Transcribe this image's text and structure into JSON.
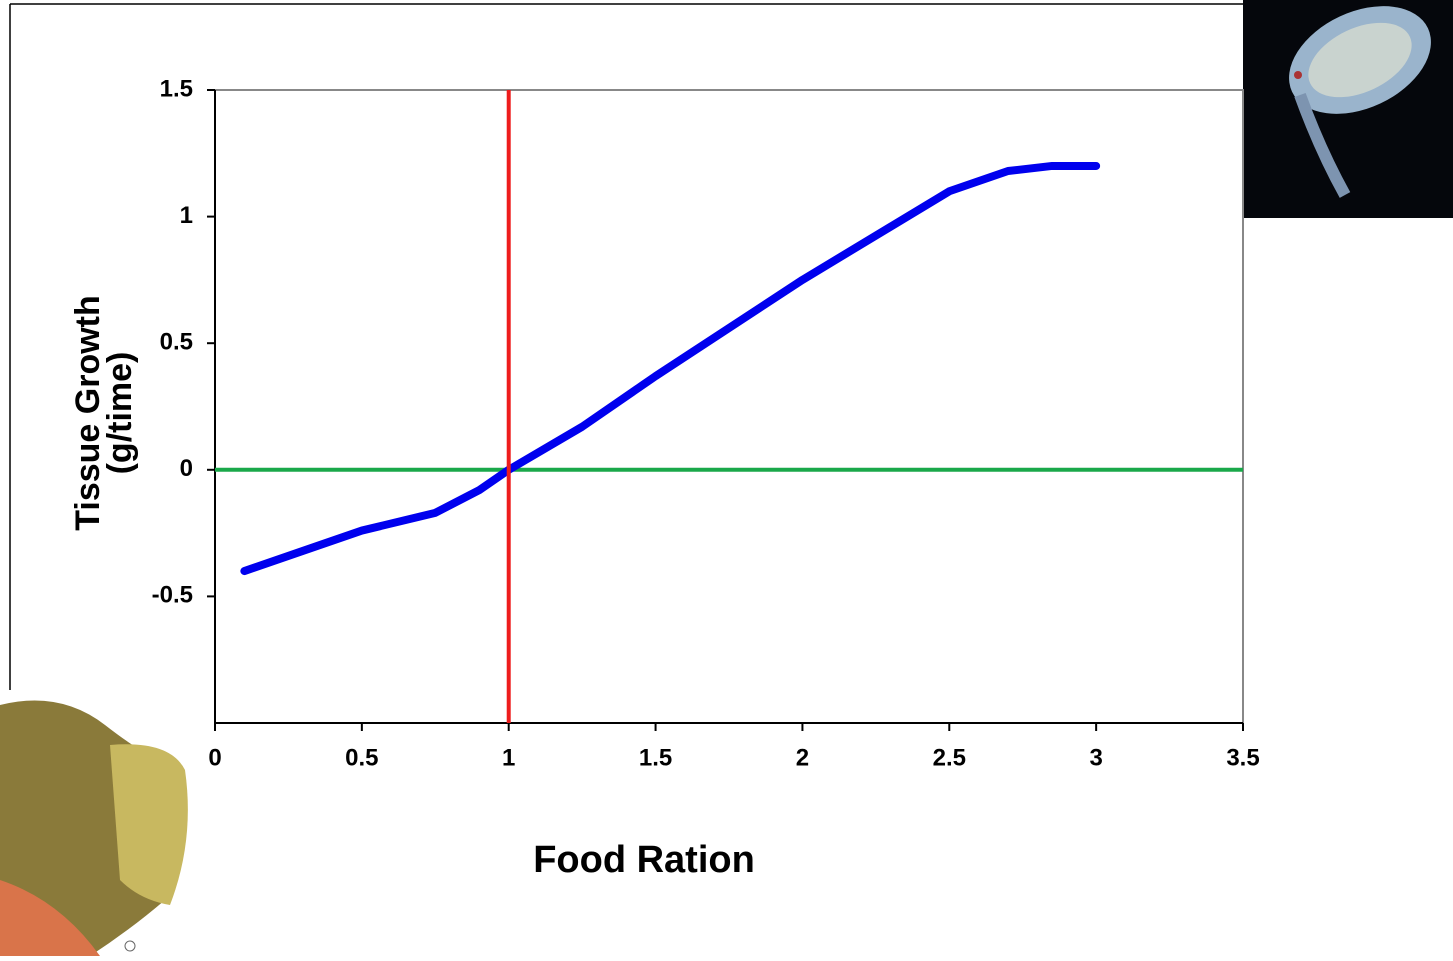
{
  "chart_data": {
    "type": "line",
    "xlabel": "Food Ration",
    "ylabel": [
      "Tissue Growth",
      "(g/time)"
    ],
    "x": [
      0.1,
      0.3,
      0.5,
      0.75,
      0.9,
      1,
      1.25,
      1.5,
      2,
      2.5,
      2.7,
      2.85,
      3
    ],
    "values": [
      -0.4,
      -0.32,
      -0.24,
      -0.17,
      -0.08,
      0,
      0.17,
      0.37,
      0.75,
      1.1,
      1.18,
      1.2,
      1.2
    ],
    "color": "#0000ee",
    "xlim": [
      0,
      3.5
    ],
    "xticks": [
      0,
      0.5,
      1,
      1.5,
      2,
      2.5,
      3,
      3.5
    ],
    "ylim": [
      -1,
      1.5
    ],
    "yticks": [
      -0.5,
      0,
      0.5,
      1,
      1.5
    ],
    "vline": {
      "x": 1,
      "color": "#ee1c1c"
    },
    "hline": {
      "y": 0,
      "color": "#1aa84a"
    }
  }
}
